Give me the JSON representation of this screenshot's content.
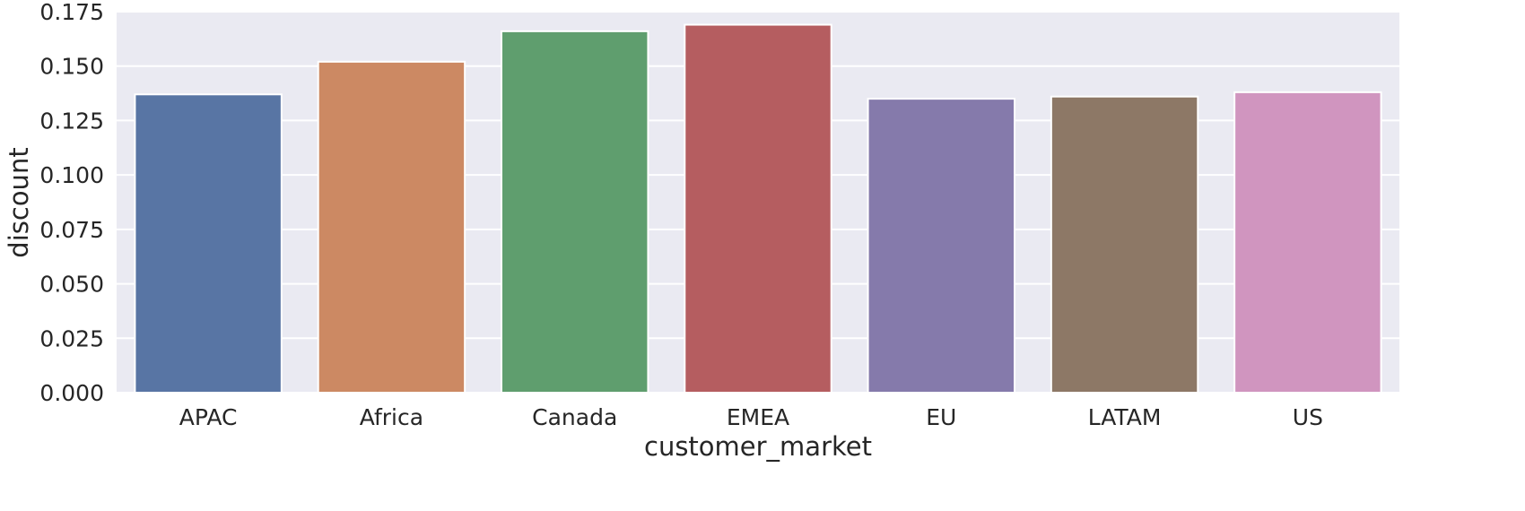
{
  "chart_data": {
    "type": "bar",
    "title": "",
    "xlabel": "customer_market",
    "ylabel": "discount",
    "categories": [
      "APAC",
      "Africa",
      "Canada",
      "EMEA",
      "EU",
      "LATAM",
      "US"
    ],
    "values": [
      0.137,
      0.152,
      0.166,
      0.169,
      0.135,
      0.136,
      0.138
    ],
    "colors": [
      "#5875a4",
      "#cc8963",
      "#5f9e6e",
      "#b55d60",
      "#857aab",
      "#8d7866",
      "#d095bf"
    ],
    "ylim": [
      0,
      0.175
    ],
    "yticks": [
      "0.000",
      "0.025",
      "0.050",
      "0.075",
      "0.100",
      "0.125",
      "0.150",
      "0.175"
    ],
    "grid": true,
    "style": {
      "background": "#eaeaf2",
      "grid_color": "#ffffff",
      "text_color": "#262626"
    }
  }
}
